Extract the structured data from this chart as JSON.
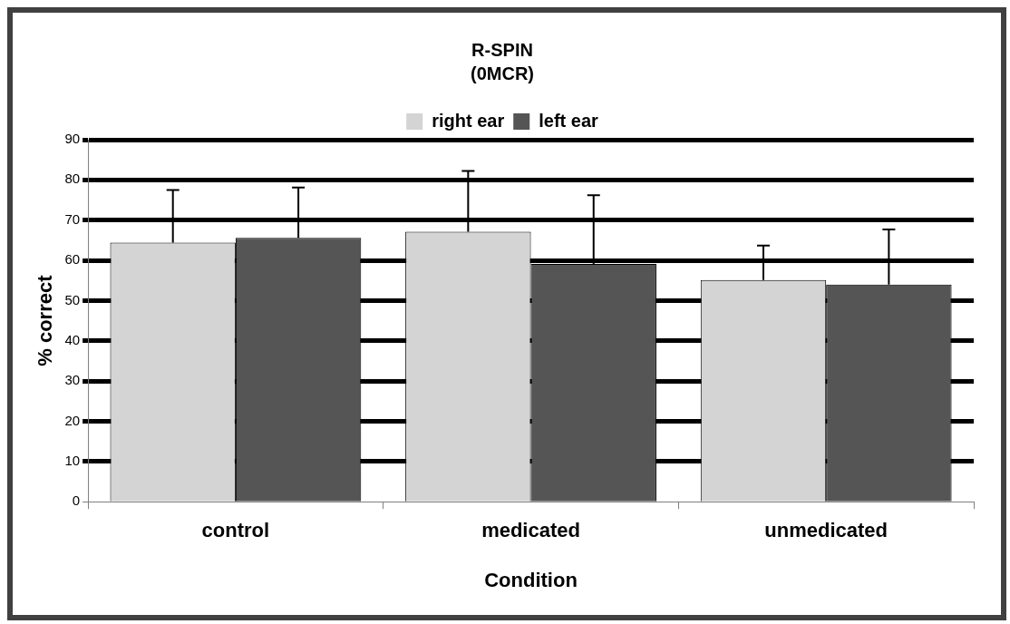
{
  "chart_data": {
    "type": "bar",
    "title": "R-SPIN",
    "subtitle": "(0MCR)",
    "xlabel": "Condition",
    "ylabel": "% correct",
    "categories": [
      "control",
      "medicated",
      "unmedicated"
    ],
    "series": [
      {
        "name": "right ear",
        "color": "#d4d4d4",
        "values": [
          64.4,
          67.1,
          55.1
        ],
        "errors": [
          [
            64.4,
            77.5
          ],
          [
            67.1,
            82.2
          ],
          [
            55.1,
            63.7
          ]
        ]
      },
      {
        "name": "left ear",
        "color": "#555555",
        "values": [
          65.6,
          59.1,
          54.0
        ],
        "errors": [
          [
            65.6,
            78.1
          ],
          [
            59.1,
            76.2
          ],
          [
            54.0,
            67.7
          ]
        ]
      }
    ],
    "ylim": [
      0,
      90
    ],
    "yticks": [
      0,
      10,
      20,
      30,
      40,
      50,
      60,
      70,
      80,
      90
    ],
    "grid": "y",
    "legend": "top"
  }
}
